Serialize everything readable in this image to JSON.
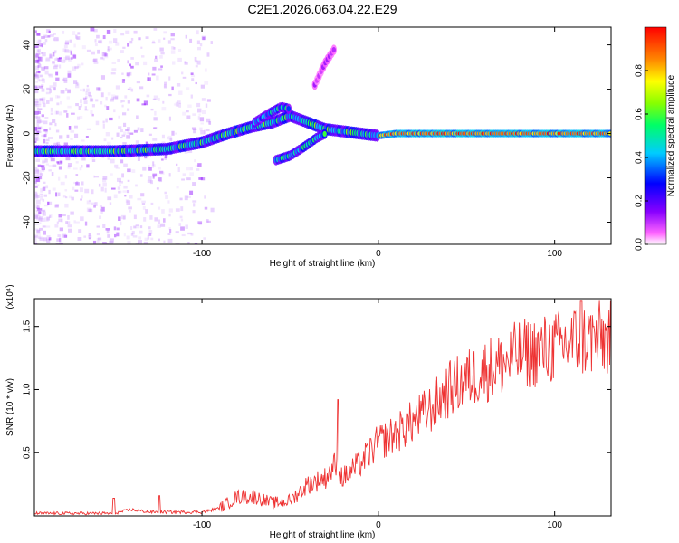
{
  "title": "C2E1.2026.063.04.22.E29",
  "chart_data": [
    {
      "type": "heatmap",
      "id": "spectrogram",
      "xlabel": "Height of straight line (km)",
      "ylabel": "Frequency (Hz)",
      "xlim": [
        -195,
        132
      ],
      "ylim": [
        -50,
        48
      ],
      "xticks": [
        -100,
        0,
        100
      ],
      "yticks": [
        -40,
        -20,
        0,
        20,
        40
      ],
      "colorbar": {
        "label": "Normalized spectral amplitude",
        "range": [
          0,
          1
        ],
        "ticks": [
          0.0,
          0.2,
          0.4,
          0.6,
          0.8
        ]
      },
      "tracks": [
        {
          "name": "main",
          "points": [
            [
              -195,
              -8
            ],
            [
              -150,
              -8
            ],
            [
              -120,
              -7
            ],
            [
              -100,
              -4
            ],
            [
              -85,
              0
            ],
            [
              -72,
              3
            ],
            [
              -60,
              5
            ],
            [
              -50,
              8
            ],
            [
              -40,
              5
            ],
            [
              -30,
              2
            ],
            [
              -20,
              1
            ],
            [
              -10,
              0
            ],
            [
              0,
              -1
            ],
            [
              10,
              0
            ],
            [
              132,
              0
            ]
          ]
        },
        {
          "name": "upper-branch",
          "points": [
            [
              -70,
              5
            ],
            [
              -62,
              9
            ],
            [
              -55,
              12
            ],
            [
              -50,
              11
            ]
          ]
        },
        {
          "name": "lower-branch",
          "points": [
            [
              -58,
              -12
            ],
            [
              -50,
              -10
            ],
            [
              -42,
              -6
            ],
            [
              -35,
              -2
            ],
            [
              -30,
              0
            ]
          ]
        },
        {
          "name": "upper-wisp",
          "points": [
            [
              -36,
              22
            ],
            [
              -30,
              32
            ],
            [
              -25,
              38
            ]
          ]
        }
      ]
    },
    {
      "type": "line",
      "id": "snr",
      "xlabel": "Height of straight line (km)",
      "ylabel": "SNR (10 * v/v)",
      "multiplier": "(x10⁴)",
      "xlim": [
        -195,
        132
      ],
      "ylim": [
        0,
        1.72
      ],
      "xticks": [
        -100,
        0,
        100
      ],
      "yticks": [
        0.5,
        1.0,
        1.5
      ],
      "ytick_labels": [
        "0.5",
        "1.0",
        "1.5"
      ],
      "color": "#ee3333",
      "trend": {
        "x": [
          -195,
          -150,
          -140,
          -130,
          -120,
          -100,
          -90,
          -80,
          -70,
          -60,
          -50,
          -40,
          -30,
          -25,
          -20,
          -10,
          0,
          10,
          20,
          30,
          40,
          50,
          60,
          70,
          80,
          90,
          100,
          110,
          120,
          132
        ],
        "y": [
          0.02,
          0.02,
          0.05,
          0.03,
          0.03,
          0.03,
          0.06,
          0.15,
          0.15,
          0.1,
          0.12,
          0.25,
          0.3,
          0.4,
          0.3,
          0.42,
          0.58,
          0.65,
          0.75,
          0.85,
          1.0,
          1.08,
          1.15,
          1.2,
          1.28,
          1.3,
          1.33,
          1.38,
          1.4,
          1.4
        ]
      },
      "spikes": [
        {
          "x": -150,
          "y": 0.14
        },
        {
          "x": -124,
          "y": 0.16
        },
        {
          "x": -23,
          "y": 0.92
        },
        {
          "x": 115,
          "y": 1.7
        }
      ]
    }
  ]
}
